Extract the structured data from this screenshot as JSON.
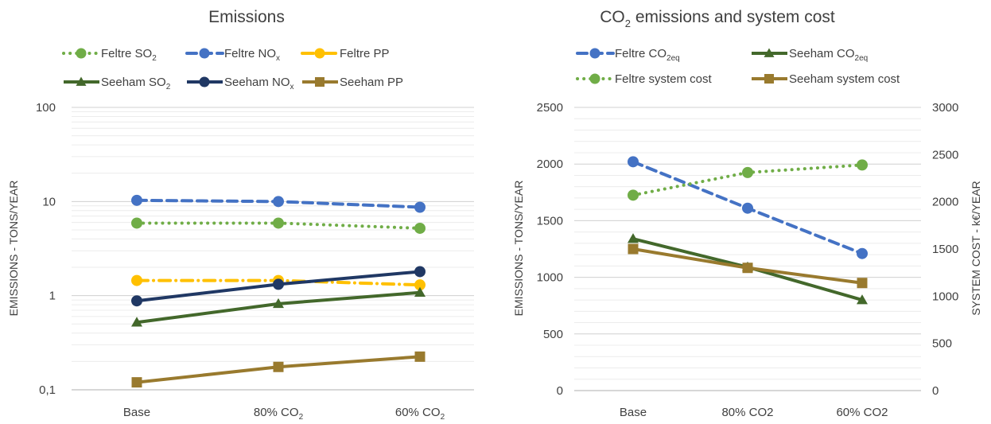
{
  "chart_data": [
    {
      "type": "line",
      "title": "Emissions",
      "ylabel": "EMISSIONS - TONS/YEAR",
      "yscale": "log",
      "ylim": [
        0.1,
        100
      ],
      "y_ticks": [
        "100",
        "10",
        "1",
        "0,1"
      ],
      "categories": [
        "Base",
        "80% CO",
        "60% CO"
      ],
      "category_subscripts": [
        "",
        "2",
        "2"
      ],
      "grid": true,
      "legend": "top",
      "series": [
        {
          "name": "Feltre SO",
          "sub": "2",
          "color": "#70ad47",
          "style": "dotted",
          "marker": "circle",
          "values": [
            5.9,
            5.9,
            5.2
          ]
        },
        {
          "name": "Feltre NO",
          "sub": "x",
          "color": "#4472c4",
          "style": "dashed",
          "marker": "circle",
          "values": [
            10.3,
            10.0,
            8.7
          ]
        },
        {
          "name": "Feltre PP",
          "sub": "",
          "color": "#ffc000",
          "style": "dashdot",
          "marker": "circle",
          "values": [
            1.45,
            1.45,
            1.3
          ]
        },
        {
          "name": "Seeham SO",
          "sub": "2",
          "color": "#43682b",
          "style": "solid",
          "marker": "triangle",
          "values": [
            0.52,
            0.82,
            1.08
          ]
        },
        {
          "name": "Seeham NO",
          "sub": "x",
          "color": "#203864",
          "style": "solid",
          "marker": "circle",
          "values": [
            0.88,
            1.32,
            1.8
          ]
        },
        {
          "name": "Seeham PP",
          "sub": "",
          "color": "#997a2e",
          "style": "solid",
          "marker": "square",
          "values": [
            0.12,
            0.175,
            0.225
          ]
        }
      ]
    },
    {
      "type": "line",
      "title": "CO",
      "title_sub": "2",
      "title_rest": " emissions and system cost",
      "ylabel": "EMISSIONS - TONS/YEAR",
      "ylabel_right": "SYSTEM COST - k€/YEAR",
      "ylim": [
        0,
        2500
      ],
      "ylim_right": [
        0,
        3000
      ],
      "y_ticks": [
        "2500",
        "2000",
        "1500",
        "1000",
        "500",
        "0"
      ],
      "y_ticks_right": [
        "3000",
        "2500",
        "2000",
        "1500",
        "1000",
        "500",
        "0"
      ],
      "categories": [
        "Base",
        "80% CO2",
        "60% CO2"
      ],
      "grid": true,
      "legend": "top",
      "series": [
        {
          "name": "Feltre CO",
          "sub": "2eq",
          "axis": "left",
          "color": "#4472c4",
          "style": "dashed",
          "marker": "circle",
          "values": [
            2020,
            1610,
            1210
          ]
        },
        {
          "name": "Seeham CO",
          "sub": "2eq",
          "axis": "left",
          "color": "#43682b",
          "style": "solid",
          "marker": "triangle",
          "values": [
            1340,
            1090,
            800
          ]
        },
        {
          "name": "Feltre system cost",
          "sub": "",
          "axis": "right",
          "color": "#70ad47",
          "style": "dotted",
          "marker": "circle",
          "values": [
            2070,
            2310,
            2390
          ]
        },
        {
          "name": "Seeham system cost",
          "sub": "",
          "axis": "right",
          "color": "#997a2e",
          "style": "solid",
          "marker": "square",
          "values": [
            1500,
            1300,
            1140
          ]
        }
      ]
    }
  ]
}
